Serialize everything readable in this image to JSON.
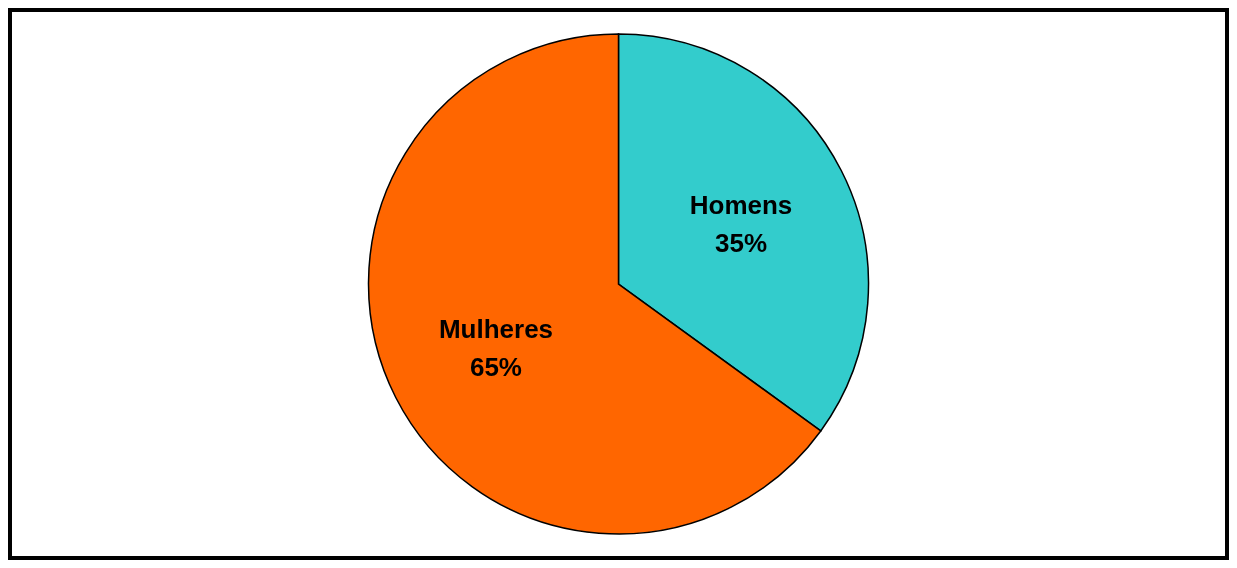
{
  "chart_data": {
    "type": "pie",
    "categories": [
      "Homens",
      "Mulheres"
    ],
    "values": [
      35,
      65
    ],
    "colors": [
      "#33cccc",
      "#ff6600"
    ],
    "value_labels": [
      "35%",
      "65%"
    ]
  }
}
